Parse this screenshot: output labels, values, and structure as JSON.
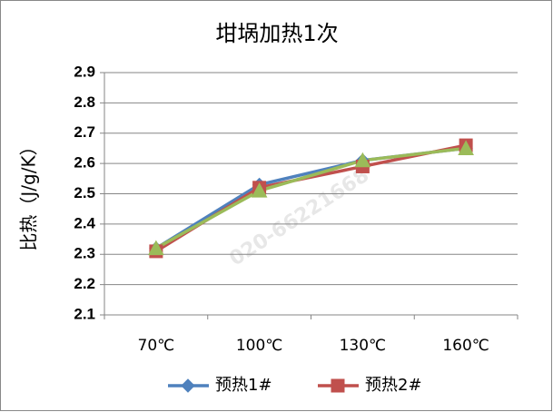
{
  "chart_data": {
    "type": "line",
    "title": "坩埚加热1次",
    "y_label": "比热（J/g/K）",
    "watermark": "020-66221668",
    "categories": [
      "70℃",
      "100℃",
      "130℃",
      "160℃"
    ],
    "series": [
      {
        "name": "预热1#",
        "color": "#4f81bd",
        "marker": "diamond",
        "values": [
          2.32,
          2.53,
          2.61,
          2.65
        ]
      },
      {
        "name": "预热2#",
        "color": "#c0504d",
        "marker": "square",
        "values": [
          2.31,
          2.52,
          2.59,
          2.66
        ]
      },
      {
        "color": "#9bbb59",
        "marker": "triangle",
        "values": [
          2.32,
          2.51,
          2.61,
          2.65
        ]
      }
    ],
    "ylim": [
      2.1,
      2.9
    ],
    "yticks": [
      2.1,
      2.2,
      2.3,
      2.4,
      2.5,
      2.6,
      2.7,
      2.8,
      2.9
    ],
    "grid": true
  }
}
